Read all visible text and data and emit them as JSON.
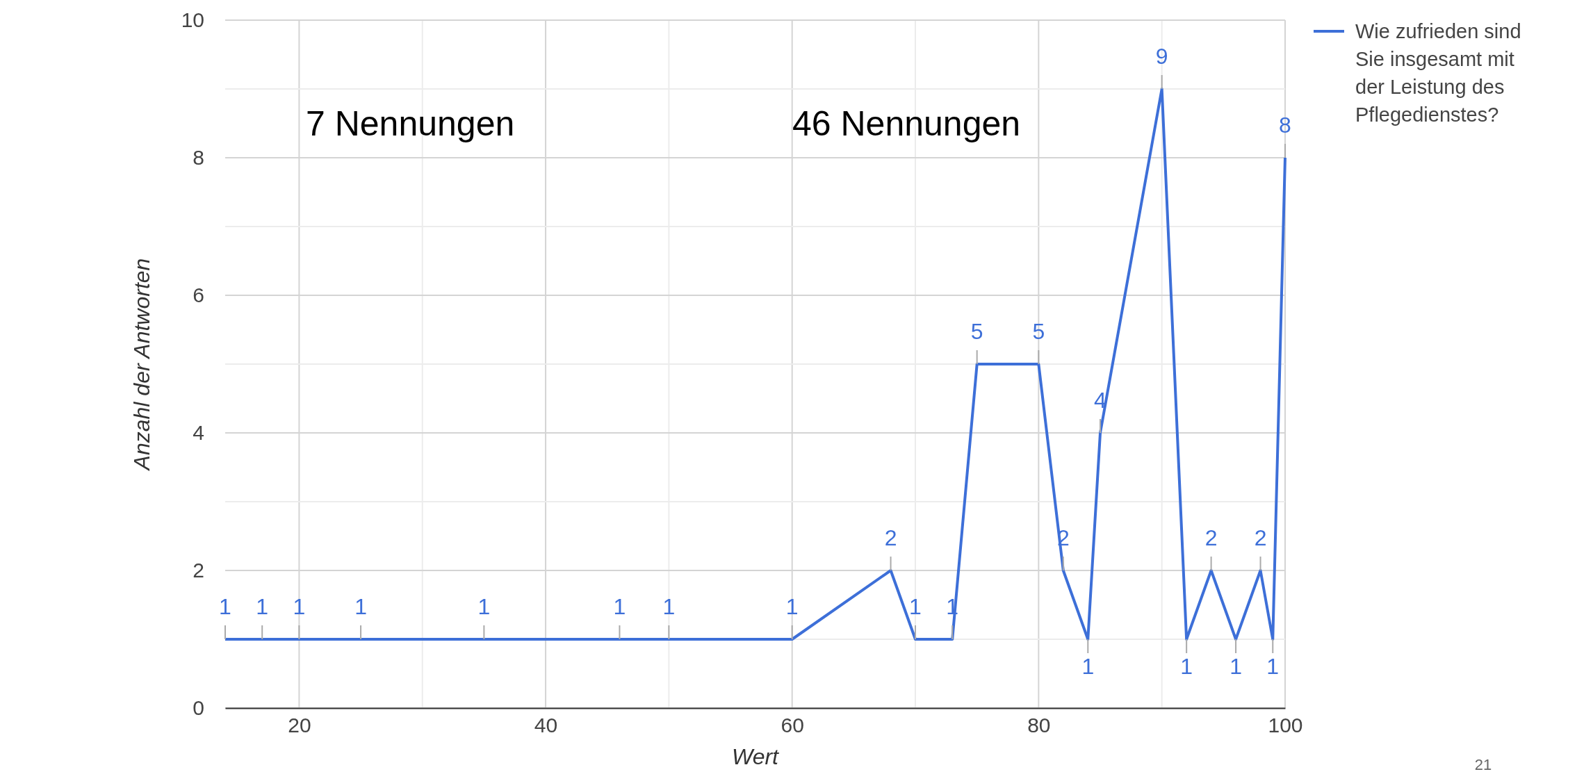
{
  "chart_data": {
    "type": "line",
    "xlabel": "Wert",
    "ylabel": "Anzahl der Antworten",
    "x": [
      14,
      17,
      20,
      25,
      35,
      46,
      50,
      60,
      68,
      70,
      73,
      75,
      80,
      82,
      84,
      85,
      90,
      92,
      94,
      96,
      98,
      99,
      100
    ],
    "series": [
      {
        "name": "Wie zufrieden sind Sie insgesamt mit der Leistung des Pflegedienstes?",
        "color": "#3d6fd8",
        "values": [
          1,
          1,
          1,
          1,
          1,
          1,
          1,
          1,
          2,
          1,
          1,
          5,
          5,
          2,
          1,
          4,
          9,
          1,
          2,
          1,
          2,
          1,
          8
        ]
      }
    ],
    "xlim": [
      14,
      100
    ],
    "xticks": [
      20,
      {
        "value": 30,
        "label": null
      },
      40,
      {
        "value": 50,
        "label": null
      },
      60,
      {
        "value": 70,
        "label": null
      },
      80,
      {
        "value": 90,
        "label": null
      },
      100
    ],
    "ylim": [
      0,
      10
    ],
    "yticks": [
      0,
      {
        "value": 1,
        "label": null
      },
      2,
      {
        "value": 3,
        "label": null
      },
      4,
      {
        "value": 5,
        "label": null
      },
      6,
      {
        "value": 7,
        "label": null
      },
      8,
      {
        "value": 9,
        "label": null
      },
      10
    ],
    "grid": true,
    "data_labels": true,
    "legend": "top right",
    "marker": "none",
    "line_style": "solid",
    "annotations": [
      "7 Nennungen",
      "46 Nennungen",
      "21"
    ]
  }
}
